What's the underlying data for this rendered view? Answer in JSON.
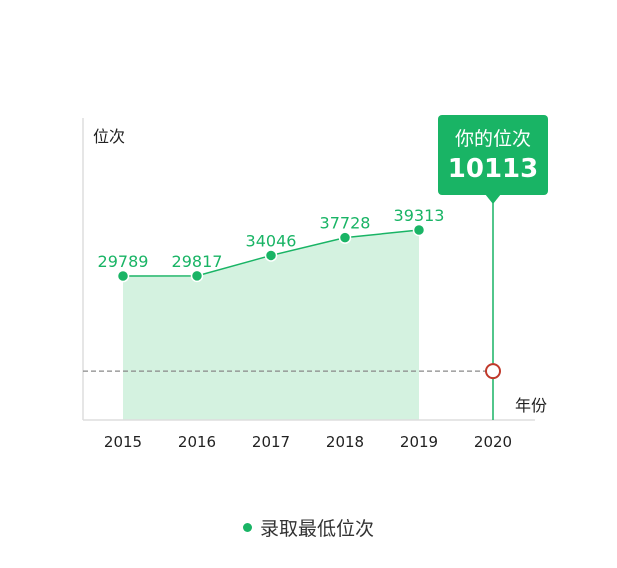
{
  "chart_data": {
    "type": "area",
    "x": [
      "2015",
      "2016",
      "2017",
      "2018",
      "2019",
      "2020"
    ],
    "series": [
      {
        "name": "录取最低位次",
        "values": [
          29789,
          29817,
          34046,
          37728,
          39313,
          null
        ]
      }
    ],
    "ylabel": "位次",
    "xlabel": "年份",
    "ylim": [
      0,
      60000
    ],
    "reference": {
      "x": "2020",
      "y": 10113,
      "label": "你的位次",
      "value": "10113"
    },
    "grid": false,
    "legend_position": "bottom-center"
  },
  "colors": {
    "series": "#19b465",
    "area": "#d4f2e0",
    "marker": "#c0392b",
    "axis": "#dddddd",
    "reference_line": "#888888"
  },
  "legend": {
    "label": "录取最低位次"
  },
  "tooltip": {
    "label": "你的位次",
    "value": "10113"
  }
}
